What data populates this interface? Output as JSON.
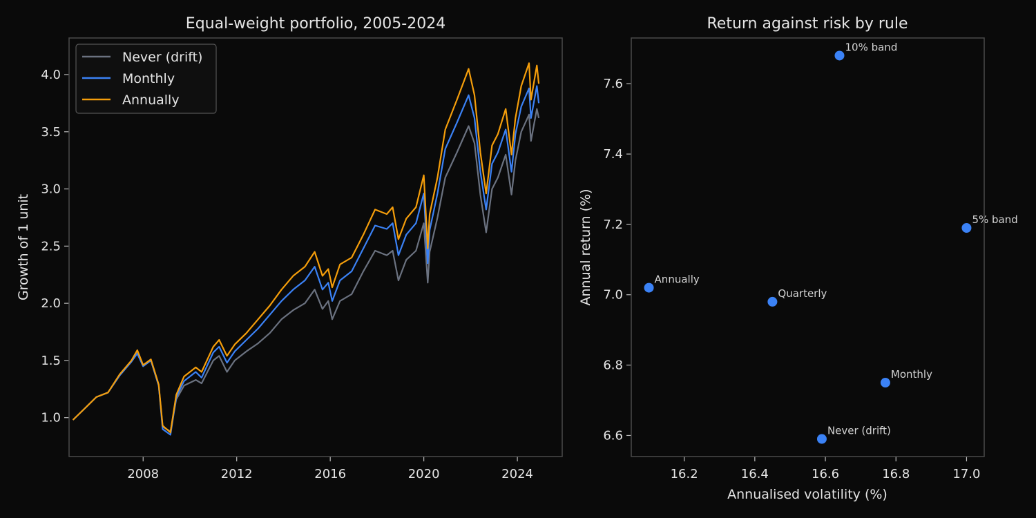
{
  "chart_data": [
    {
      "type": "line",
      "title": "Equal-weight portfolio, 2005-2024",
      "xlabel": "",
      "ylabel": "Growth of 1 unit",
      "x_type": "date",
      "xlim": [
        "2004-11-01",
        "2025-12-01"
      ],
      "ylim": [
        0.66,
        4.32
      ],
      "x_ticks": [
        "2008",
        "2012",
        "2016",
        "2020",
        "2024"
      ],
      "y_ticks": [
        "1.0",
        "1.5",
        "2.0",
        "2.5",
        "3.0",
        "3.5",
        "4.0"
      ],
      "grid": false,
      "legend": "top-left",
      "x": [
        "2005-01",
        "2005-07",
        "2006-01",
        "2006-07",
        "2007-01",
        "2007-07",
        "2007-10",
        "2008-01",
        "2008-05",
        "2008-09",
        "2008-11",
        "2009-03",
        "2009-06",
        "2009-10",
        "2010-04",
        "2010-07",
        "2011-01",
        "2011-04",
        "2011-08",
        "2011-12",
        "2012-06",
        "2012-12",
        "2013-06",
        "2013-12",
        "2014-06",
        "2014-12",
        "2015-05",
        "2015-09",
        "2015-12",
        "2016-02",
        "2016-06",
        "2016-12",
        "2017-06",
        "2017-12",
        "2018-06",
        "2018-09",
        "2018-12",
        "2019-04",
        "2019-09",
        "2020-01",
        "2020-03",
        "2020-04",
        "2020-08",
        "2020-12",
        "2021-06",
        "2021-12",
        "2022-03",
        "2022-06",
        "2022-09",
        "2022-12",
        "2023-03",
        "2023-07",
        "2023-10",
        "2023-12",
        "2024-03",
        "2024-07",
        "2024-08",
        "2024-11",
        "2024-12"
      ],
      "series": [
        {
          "name": "Never (drift)",
          "color": "#6b7280",
          "values": [
            0.98,
            1.08,
            1.18,
            1.22,
            1.37,
            1.49,
            1.58,
            1.45,
            1.5,
            1.28,
            0.92,
            0.88,
            1.16,
            1.28,
            1.33,
            1.3,
            1.5,
            1.54,
            1.4,
            1.5,
            1.58,
            1.65,
            1.74,
            1.86,
            1.94,
            2.0,
            2.12,
            1.95,
            2.02,
            1.86,
            2.02,
            2.08,
            2.28,
            2.46,
            2.42,
            2.46,
            2.2,
            2.38,
            2.46,
            2.7,
            2.18,
            2.45,
            2.75,
            3.1,
            3.32,
            3.55,
            3.4,
            2.95,
            2.62,
            3.0,
            3.1,
            3.3,
            2.95,
            3.25,
            3.5,
            3.65,
            3.42,
            3.7,
            3.62
          ]
        },
        {
          "name": "Monthly",
          "color": "#3b82f6",
          "values": [
            0.98,
            1.08,
            1.18,
            1.22,
            1.37,
            1.49,
            1.56,
            1.45,
            1.5,
            1.28,
            0.9,
            0.85,
            1.18,
            1.32,
            1.4,
            1.35,
            1.57,
            1.62,
            1.48,
            1.58,
            1.68,
            1.78,
            1.9,
            2.02,
            2.12,
            2.2,
            2.32,
            2.12,
            2.18,
            2.02,
            2.2,
            2.28,
            2.48,
            2.68,
            2.65,
            2.7,
            2.42,
            2.6,
            2.7,
            2.96,
            2.35,
            2.64,
            2.96,
            3.35,
            3.58,
            3.82,
            3.62,
            3.15,
            2.82,
            3.22,
            3.32,
            3.52,
            3.15,
            3.48,
            3.72,
            3.88,
            3.62,
            3.9,
            3.75
          ]
        },
        {
          "name": "Annually",
          "color": "#f59e0b",
          "values": [
            0.98,
            1.08,
            1.18,
            1.22,
            1.38,
            1.5,
            1.59,
            1.46,
            1.51,
            1.29,
            0.93,
            0.87,
            1.2,
            1.36,
            1.44,
            1.4,
            1.62,
            1.68,
            1.54,
            1.64,
            1.74,
            1.86,
            1.98,
            2.12,
            2.24,
            2.32,
            2.45,
            2.24,
            2.3,
            2.14,
            2.34,
            2.4,
            2.6,
            2.82,
            2.78,
            2.84,
            2.56,
            2.74,
            2.84,
            3.12,
            2.48,
            2.78,
            3.1,
            3.52,
            3.78,
            4.05,
            3.82,
            3.32,
            2.96,
            3.38,
            3.48,
            3.7,
            3.3,
            3.62,
            3.9,
            4.1,
            3.78,
            4.08,
            3.92
          ]
        }
      ]
    },
    {
      "type": "scatter",
      "title": "Return against risk by rule",
      "xlabel": "Annualised volatility (%)",
      "ylabel": "Annual return (%)",
      "xlim": [
        16.05,
        17.05
      ],
      "ylim": [
        6.54,
        7.73
      ],
      "x_ticks": [
        "16.2",
        "16.4",
        "16.6",
        "16.8",
        "17.0"
      ],
      "y_ticks": [
        "6.6",
        "6.8",
        "7.0",
        "7.2",
        "7.4",
        "7.6"
      ],
      "grid": false,
      "marker_color": "#3b82f6",
      "points": [
        {
          "label": "Never (drift)",
          "x": 16.59,
          "y": 6.59
        },
        {
          "label": "Monthly",
          "x": 16.77,
          "y": 6.75
        },
        {
          "label": "Quarterly",
          "x": 16.45,
          "y": 6.98
        },
        {
          "label": "Annually",
          "x": 16.1,
          "y": 7.02
        },
        {
          "label": "5% band",
          "x": 17.0,
          "y": 7.19
        },
        {
          "label": "10% band",
          "x": 16.64,
          "y": 7.68
        }
      ]
    }
  ]
}
